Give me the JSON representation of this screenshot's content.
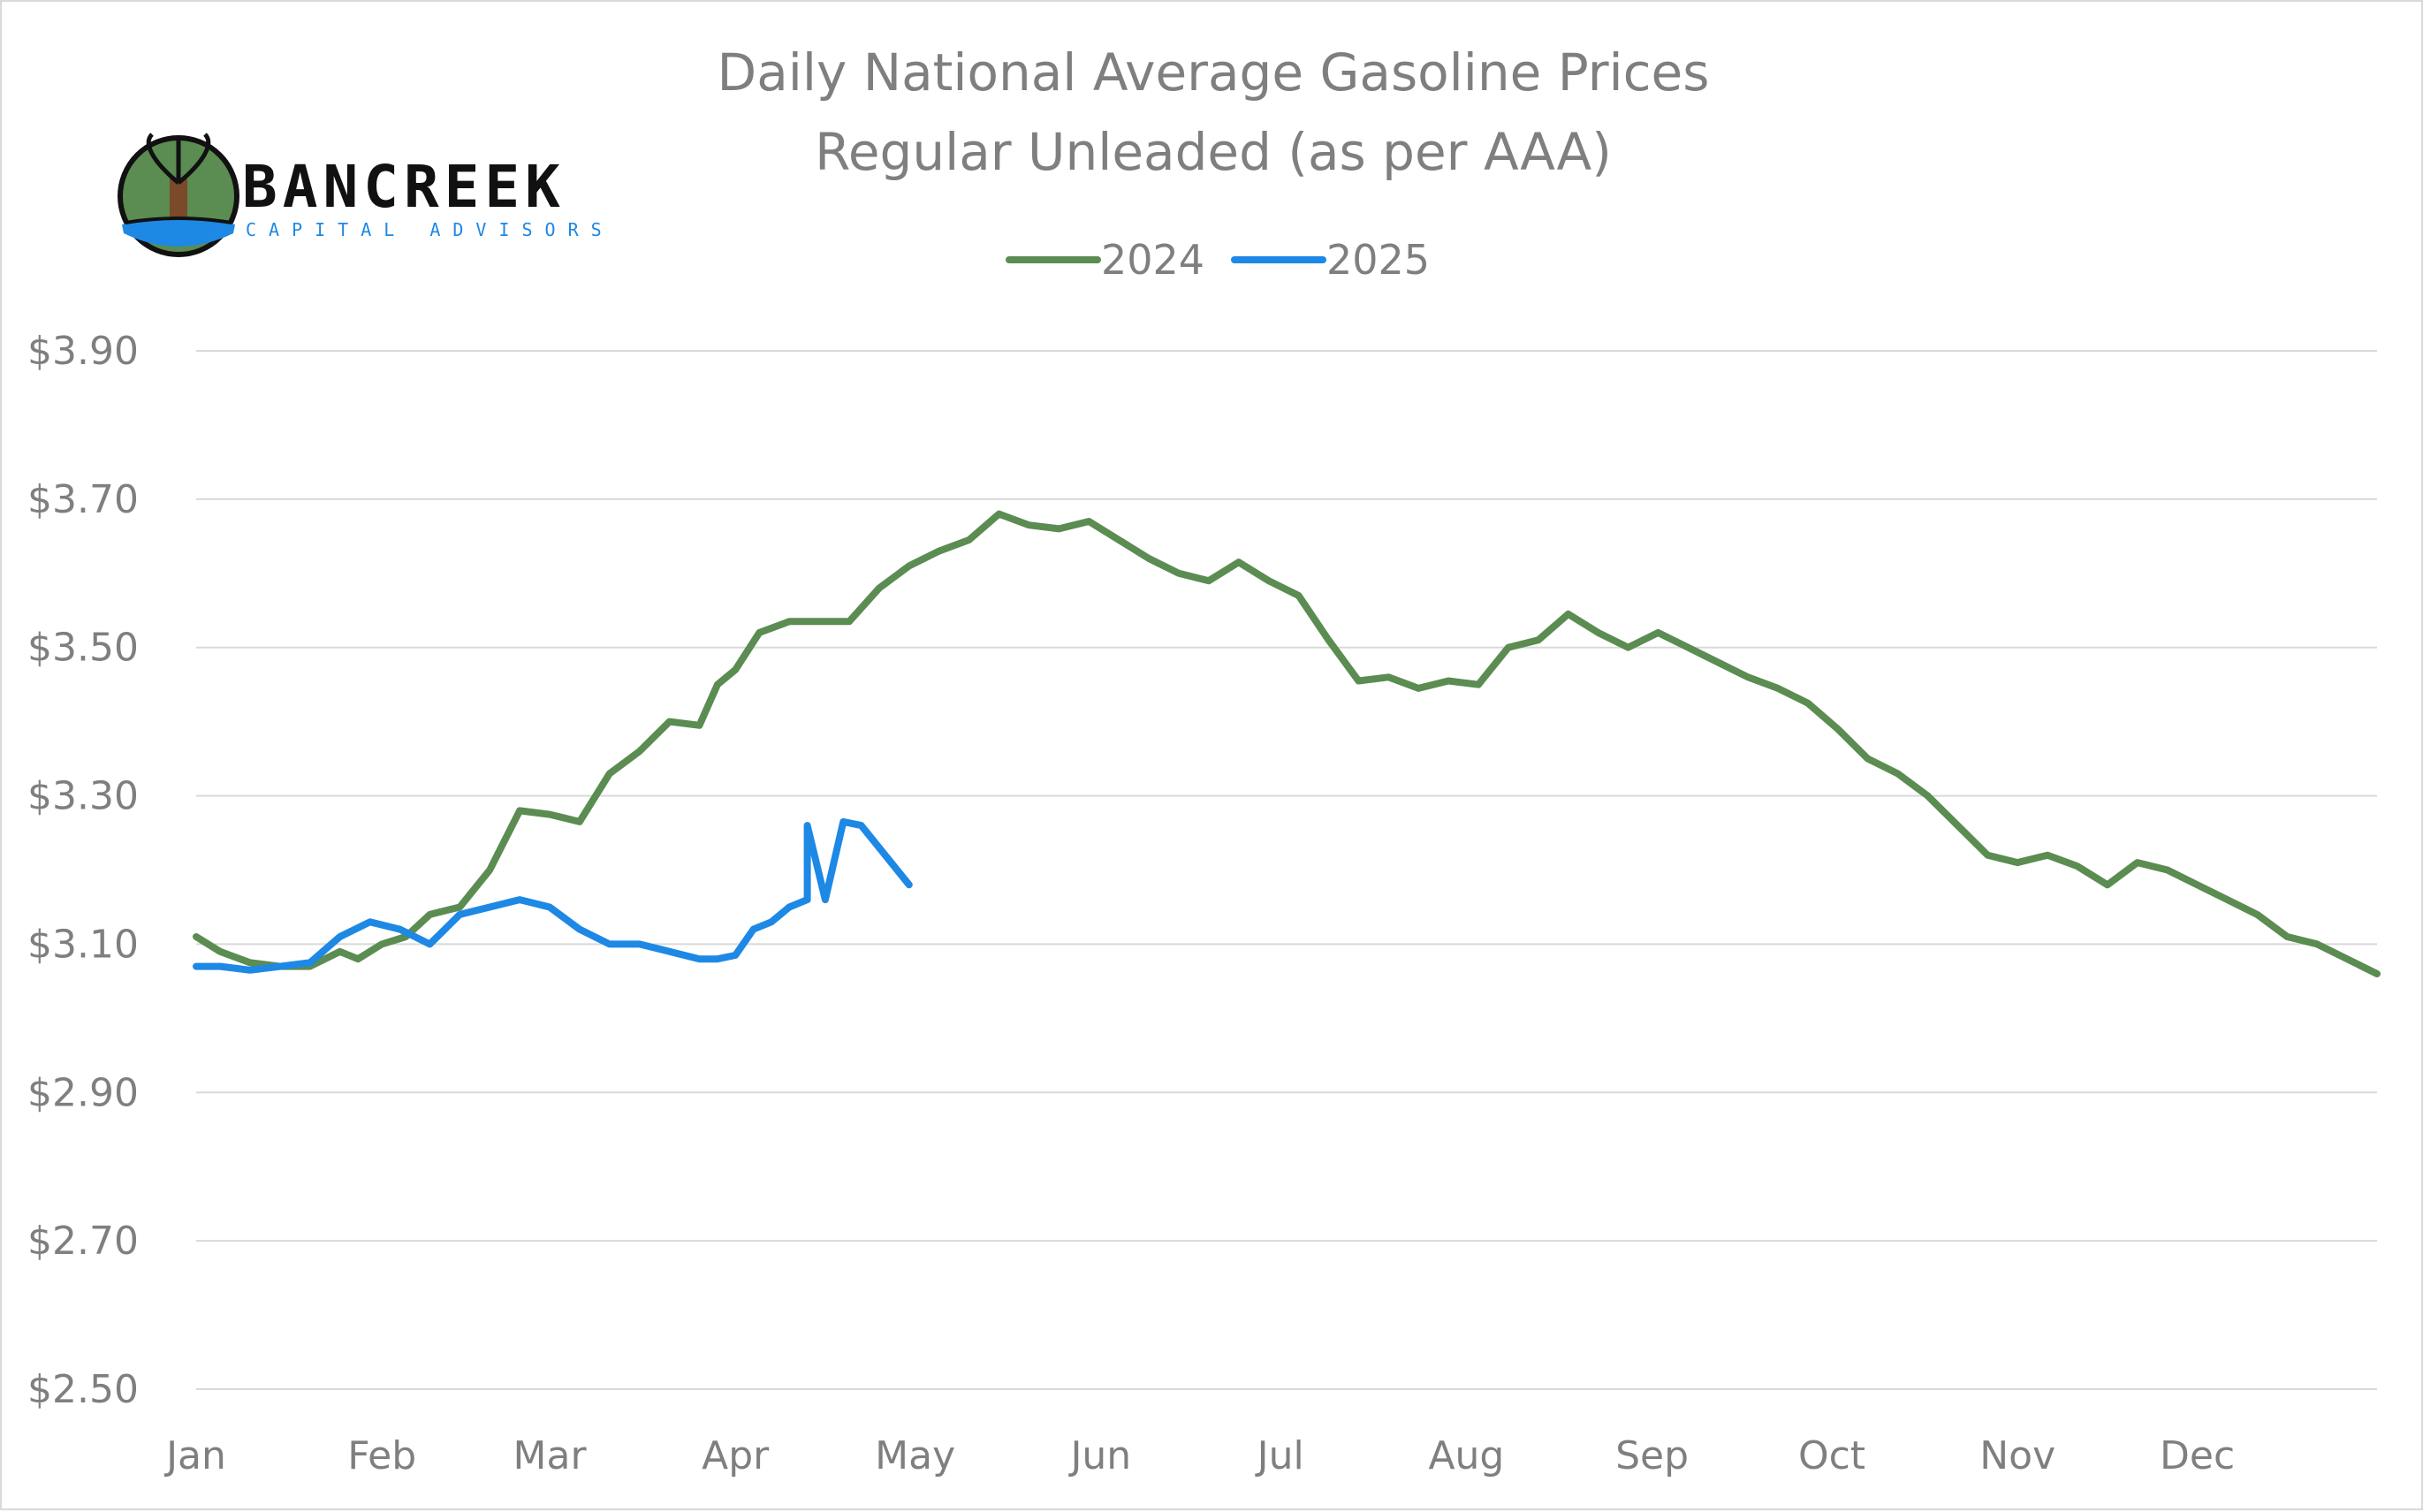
{
  "brand": {
    "name": "BANCREEK",
    "subtitle": "CAPITAL ADVISORS",
    "colors": {
      "green": "#5b8c51",
      "blue": "#1e88e5",
      "dark": "#111111",
      "trunk": "#7a4a2a"
    }
  },
  "chart_data": {
    "type": "line",
    "title": "Daily National Average Gasoline Prices",
    "subtitle": "Regular Unleaded (as per AAA)",
    "xlabel": "",
    "ylabel": "",
    "x_tick_labels": [
      "Jan",
      "Feb",
      "Mar",
      "Apr",
      "May",
      "Jun",
      "Jul",
      "Aug",
      "Sep",
      "Oct",
      "Nov",
      "Dec"
    ],
    "y_tick_labels": [
      "$3.90",
      "$3.70",
      "$3.50",
      "$3.30",
      "$3.10",
      "$2.90",
      "$2.70",
      "$2.50"
    ],
    "ylim": [
      2.5,
      3.9
    ],
    "xlim": [
      1,
      365
    ],
    "grid": true,
    "legend_position": "top-center",
    "series": [
      {
        "name": "2024",
        "color": "#5b8c51",
        "x": [
          1,
          5,
          10,
          15,
          20,
          25,
          28,
          32,
          36,
          40,
          45,
          50,
          55,
          60,
          65,
          70,
          75,
          80,
          85,
          88,
          91,
          95,
          100,
          105,
          110,
          115,
          120,
          125,
          130,
          135,
          140,
          145,
          150,
          155,
          160,
          165,
          170,
          175,
          180,
          185,
          190,
          195,
          200,
          205,
          210,
          215,
          220,
          225,
          230,
          235,
          240,
          245,
          250,
          255,
          260,
          265,
          270,
          275,
          280,
          285,
          290,
          295,
          300,
          305,
          310,
          315,
          320,
          325,
          330,
          335,
          340,
          345,
          350,
          355,
          360,
          365
        ],
        "values": [
          3.11,
          3.09,
          3.075,
          3.07,
          3.07,
          3.09,
          3.08,
          3.1,
          3.11,
          3.14,
          3.15,
          3.2,
          3.28,
          3.275,
          3.265,
          3.33,
          3.36,
          3.4,
          3.395,
          3.45,
          3.47,
          3.52,
          3.535,
          3.535,
          3.535,
          3.58,
          3.61,
          3.63,
          3.645,
          3.68,
          3.665,
          3.66,
          3.67,
          3.645,
          3.62,
          3.6,
          3.59,
          3.615,
          3.59,
          3.57,
          3.51,
          3.455,
          3.46,
          3.445,
          3.455,
          3.45,
          3.5,
          3.51,
          3.545,
          3.52,
          3.5,
          3.52,
          3.5,
          3.48,
          3.46,
          3.445,
          3.425,
          3.39,
          3.35,
          3.33,
          3.3,
          3.26,
          3.22,
          3.21,
          3.22,
          3.205,
          3.18,
          3.21,
          3.2,
          3.18,
          3.16,
          3.14,
          3.11,
          3.1,
          3.08,
          3.06
        ]
      },
      {
        "name": "2025",
        "color": "#1e88e5",
        "x": [
          1,
          5,
          10,
          15,
          20,
          25,
          30,
          35,
          40,
          45,
          50,
          55,
          60,
          65,
          70,
          75,
          80,
          85,
          88,
          91,
          94,
          97,
          100,
          103,
          106,
          109,
          112,
          115,
          118,
          120,
          103
        ],
        "values": [
          3.07,
          3.07,
          3.065,
          3.07,
          3.075,
          3.11,
          3.13,
          3.12,
          3.1,
          3.14,
          3.15,
          3.16,
          3.15,
          3.12,
          3.1,
          3.1,
          3.09,
          3.08,
          3.08,
          3.085,
          3.12,
          3.13,
          3.15,
          3.16,
          3.16,
          3.265,
          3.26,
          3.23,
          3.2,
          3.18,
          3.26
        ]
      }
    ]
  }
}
